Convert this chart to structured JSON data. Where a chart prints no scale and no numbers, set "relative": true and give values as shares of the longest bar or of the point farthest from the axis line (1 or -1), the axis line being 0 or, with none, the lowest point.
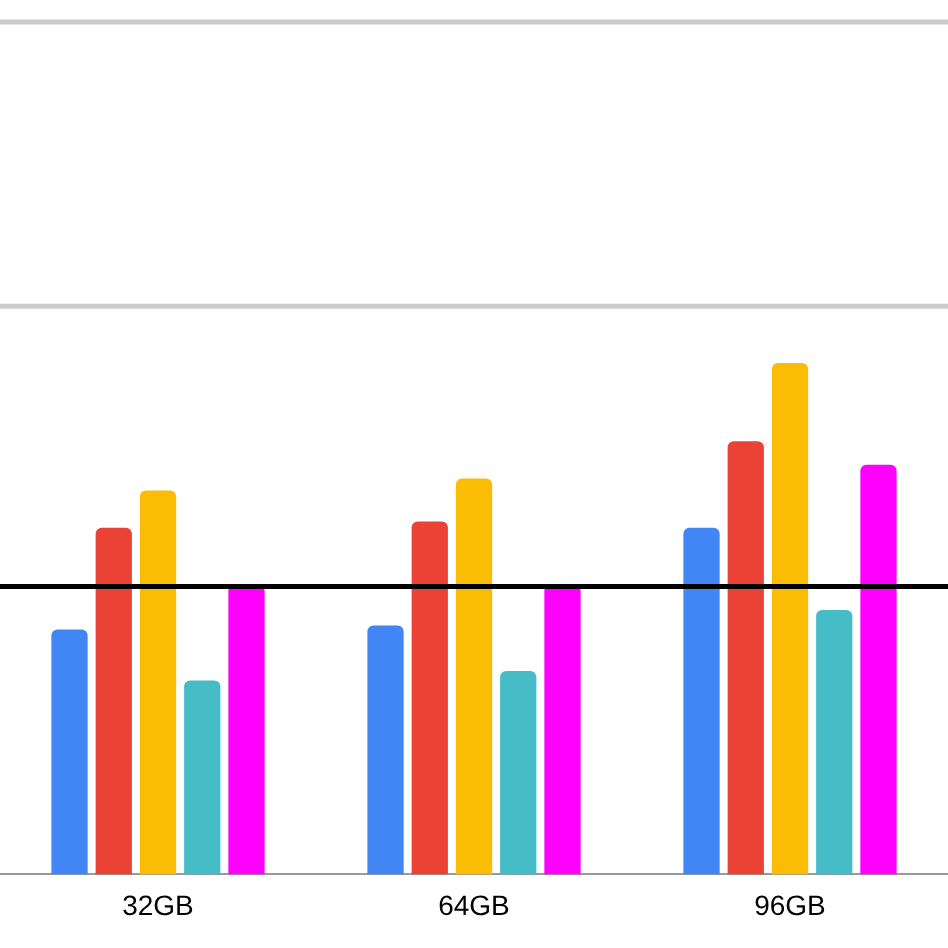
{
  "chart_data": {
    "type": "bar",
    "relative": true,
    "categories": [
      "32GB",
      "64GB",
      "96GB"
    ],
    "series": [
      {
        "color": "#4285f4",
        "values": [
          0.479,
          0.487,
          0.678
        ]
      },
      {
        "color": "#ea4335",
        "values": [
          0.678,
          0.69,
          0.847
        ]
      },
      {
        "color": "#fbbc04",
        "values": [
          0.751,
          0.774,
          1
        ]
      },
      {
        "color": "#46bdc6",
        "values": [
          0.379,
          0.398,
          0.517
        ]
      },
      {
        "color": "#ff00ff",
        "values": [
          0.567,
          0.567,
          0.801
        ]
      }
    ],
    "ref_lines": [
      {
        "axis": "y",
        "value": 0.563,
        "color": "#000000"
      },
      {
        "axis": "y",
        "value": 1.111,
        "color": "#cccccc"
      },
      {
        "axis": "y",
        "value": 1.667,
        "color": "#cccccc"
      }
    ],
    "legend": false
  }
}
